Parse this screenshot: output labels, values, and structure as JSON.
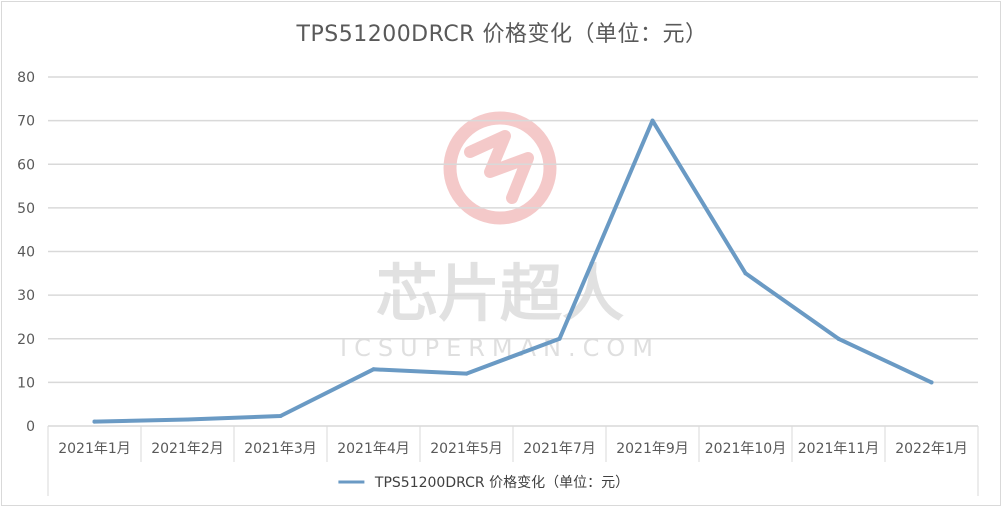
{
  "chart_data": {
    "type": "line",
    "title": "TPS51200DRCR 价格变化（单位：元）",
    "categories": [
      "2021年1月",
      "2021年2月",
      "2021年3月",
      "2021年4月",
      "2021年5月",
      "2021年7月",
      "2021年9月",
      "2021年10月",
      "2021年11月",
      "2022年1月"
    ],
    "series": [
      {
        "name": "TPS51200DRCR 价格变化（单位：元）",
        "values": [
          1,
          1.5,
          2.3,
          13,
          12,
          20,
          70,
          35,
          20,
          10
        ]
      }
    ],
    "ylim": [
      0,
      80
    ],
    "yticks": [
      0,
      10,
      20,
      30,
      40,
      50,
      60,
      70,
      80
    ],
    "grid": true,
    "legend_position": "bottom",
    "line_color": "#6a9ac4"
  },
  "watermark": {
    "text": "芯片超人",
    "subtext": "ICSUPERMAN.COM",
    "logo_icon": "icsuperman-logo-icon",
    "color": "#e88a8a"
  }
}
